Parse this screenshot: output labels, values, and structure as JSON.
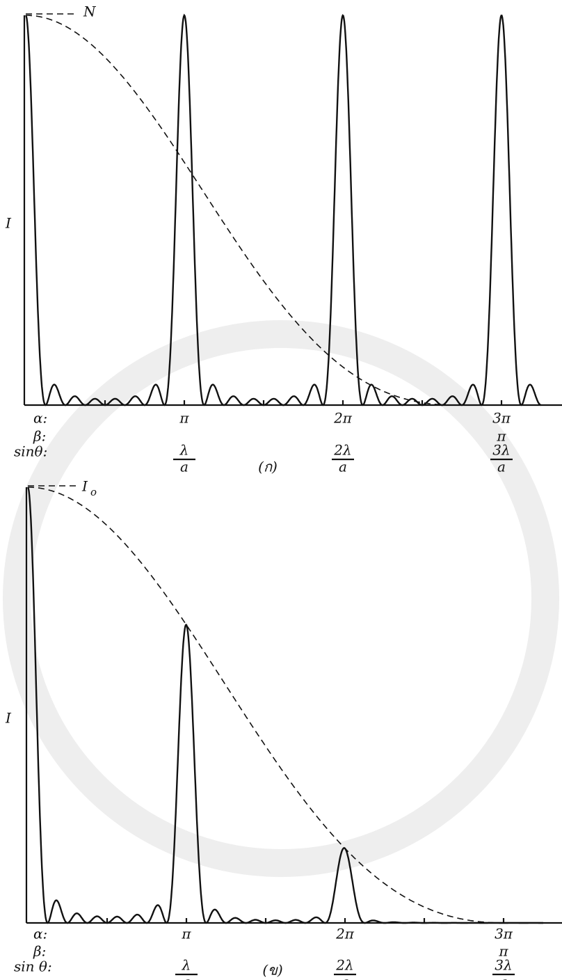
{
  "panels": [
    {
      "curve_label": "N",
      "y_label": "I",
      "row_labels": [
        "α:",
        "β:",
        "sinθ:"
      ],
      "alpha": [
        "π",
        "2π",
        "3π"
      ],
      "beta": [
        "π"
      ],
      "sin_num": [
        "λ",
        "2λ",
        "3λ"
      ],
      "sin_den": [
        "a",
        "a",
        "a"
      ],
      "caption": "(ก)"
    },
    {
      "curve_label": "I",
      "curve_label_sub": "o",
      "y_label": "I",
      "row_labels": [
        "α:",
        "β:",
        "sin θ:"
      ],
      "alpha": [
        "π",
        "2π",
        "3π"
      ],
      "beta": [
        "π"
      ],
      "sin_num": [
        "λ",
        "2λ",
        "3λ"
      ],
      "sin_den": [
        "a",
        "a",
        "a"
      ],
      "caption": "(ข)"
    }
  ]
}
